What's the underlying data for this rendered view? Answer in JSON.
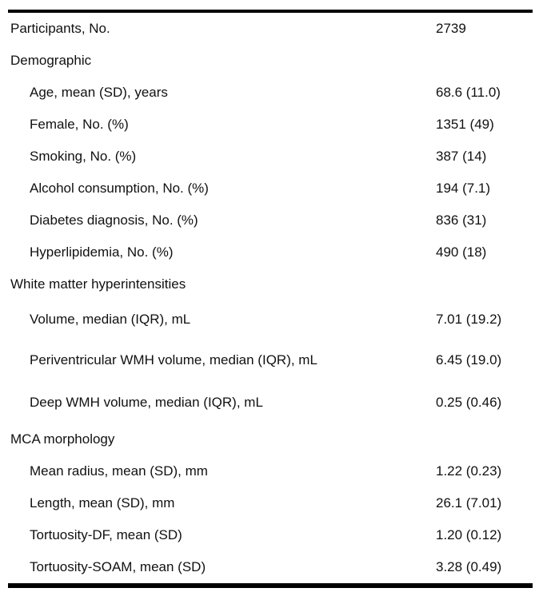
{
  "table": {
    "name": "participant-characteristics",
    "columns": [
      "characteristic",
      "value"
    ],
    "rows": [
      {
        "label": "Participants, No.",
        "value": "2739",
        "indent": false,
        "section_header": false
      },
      {
        "label": "Demographic",
        "value": "",
        "indent": false,
        "section_header": true
      },
      {
        "label": "Age, mean (SD), years",
        "value": "68.6 (11.0)",
        "indent": true,
        "section_header": false
      },
      {
        "label": "Female, No. (%)",
        "value": "1351 (49)",
        "indent": true,
        "section_header": false
      },
      {
        "label": "Smoking, No. (%)",
        "value": "387 (14)",
        "indent": true,
        "section_header": false
      },
      {
        "label": "Alcohol consumption, No. (%)",
        "value": "194 (7.1)",
        "indent": true,
        "section_header": false
      },
      {
        "label": "Diabetes diagnosis, No. (%)",
        "value": "836 (31)",
        "indent": true,
        "section_header": false
      },
      {
        "label": "Hyperlipidemia, No. (%)",
        "value": "490 (18)",
        "indent": true,
        "section_header": false
      },
      {
        "label": "White matter hyperintensities",
        "value": "",
        "indent": false,
        "section_header": true
      },
      {
        "label": "Volume, median (IQR), mL",
        "value": "7.01 (19.2)",
        "indent": true,
        "section_header": false
      },
      {
        "label": "Periventricular WMH volume, median (IQR), mL",
        "value": "6.45 (19.0)",
        "indent": true,
        "section_header": false
      },
      {
        "label": "Deep WMH volume, median (IQR), mL",
        "value": "0.25 (0.46)",
        "indent": true,
        "section_header": false
      },
      {
        "label": "MCA morphology",
        "value": "",
        "indent": false,
        "section_header": true
      },
      {
        "label": "Mean radius, mean (SD), mm",
        "value": "1.22 (0.23)",
        "indent": true,
        "section_header": false
      },
      {
        "label": "Length, mean (SD), mm",
        "value": "26.1 (7.01)",
        "indent": true,
        "section_header": false
      },
      {
        "label": "Tortuosity-DF, mean (SD)",
        "value": "1.20 (0.12)",
        "indent": true,
        "section_header": false
      },
      {
        "label": "Tortuosity-SOAM, mean (SD)",
        "value": "3.28 (0.49)",
        "indent": true,
        "section_header": false
      }
    ]
  },
  "colors": {
    "text": "#111111",
    "border": "#000000",
    "background": "#ffffff"
  },
  "chart_data": {
    "type": "table",
    "title": "",
    "columns": [
      "characteristic",
      "value"
    ],
    "rows": [
      [
        "Participants, No.",
        "2739"
      ],
      [
        "Demographic",
        ""
      ],
      [
        "Age, mean (SD), years",
        "68.6 (11.0)"
      ],
      [
        "Female, No. (%)",
        "1351 (49)"
      ],
      [
        "Smoking, No. (%)",
        "387 (14)"
      ],
      [
        "Alcohol consumption, No. (%)",
        "194 (7.1)"
      ],
      [
        "Diabetes diagnosis, No. (%)",
        "836 (31)"
      ],
      [
        "Hyperlipidemia, No. (%)",
        "490 (18)"
      ],
      [
        "White matter hyperintensities",
        ""
      ],
      [
        "Volume, median (IQR), mL",
        "7.01 (19.2)"
      ],
      [
        "Periventricular WMH volume, median (IQR), mL",
        "6.45 (19.0)"
      ],
      [
        "Deep WMH volume, median (IQR), mL",
        "0.25 (0.46)"
      ],
      [
        "MCA morphology",
        ""
      ],
      [
        "Mean radius, mean (SD), mm",
        "1.22 (0.23)"
      ],
      [
        "Length, mean (SD), mm",
        "26.1 (7.01)"
      ],
      [
        "Tortuosity-DF, mean (SD)",
        "1.20 (0.12)"
      ],
      [
        "Tortuosity-SOAM, mean (SD)",
        "3.28 (0.49)"
      ]
    ]
  }
}
